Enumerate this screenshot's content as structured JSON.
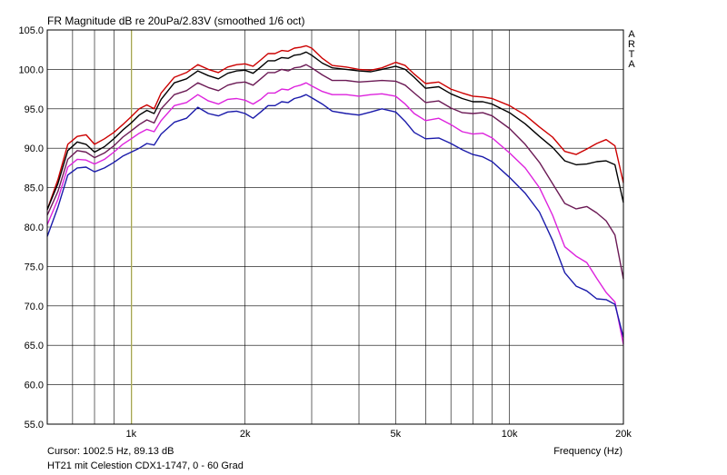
{
  "header": {
    "title": "FR Magnitude dB re 20uPa/2.83V (smoothed 1/6 oct)",
    "brand": "ARTA"
  },
  "footer": {
    "cursor_readout": "Cursor: 1002.5 Hz, 89.13 dB",
    "note": "HT21 mit Celestion CDX1-1747, 0 - 60 Grad"
  },
  "chart_data": {
    "type": "line",
    "x_scale": "log",
    "xlabel": "Frequency (Hz)",
    "ylabel": "",
    "xlim": [
      600,
      20000
    ],
    "ylim": [
      55,
      105
    ],
    "x_tick_labels": [
      {
        "value": 1000,
        "label": "1k"
      },
      {
        "value": 2000,
        "label": "2k"
      },
      {
        "value": 5000,
        "label": "5k"
      },
      {
        "value": 10000,
        "label": "10k"
      },
      {
        "value": 20000,
        "label": "20k"
      }
    ],
    "y_ticks": [
      55.0,
      60.0,
      65.0,
      70.0,
      75.0,
      80.0,
      85.0,
      90.0,
      95.0,
      100.0,
      105.0
    ],
    "grid": true,
    "cursor_x": 1002.5,
    "colors": {
      "grid": "#000000",
      "cursor": "#c8c864",
      "frame": "#000000"
    },
    "series": [
      {
        "color": "#cc0000",
        "points": [
          [
            600,
            82.2
          ],
          [
            640,
            86
          ],
          [
            680,
            90.5
          ],
          [
            720,
            91.5
          ],
          [
            760,
            91.7
          ],
          [
            800,
            90.5
          ],
          [
            850,
            91.2
          ],
          [
            900,
            92
          ],
          [
            950,
            93
          ],
          [
            1000,
            94
          ],
          [
            1050,
            95
          ],
          [
            1100,
            95.5
          ],
          [
            1150,
            95
          ],
          [
            1200,
            97
          ],
          [
            1300,
            99
          ],
          [
            1400,
            99.6
          ],
          [
            1500,
            100.6
          ],
          [
            1600,
            100
          ],
          [
            1700,
            99.6
          ],
          [
            1800,
            100.3
          ],
          [
            1900,
            100.6
          ],
          [
            2000,
            100.7
          ],
          [
            2100,
            100.4
          ],
          [
            2200,
            101.2
          ],
          [
            2300,
            102
          ],
          [
            2400,
            102
          ],
          [
            2500,
            102.4
          ],
          [
            2600,
            102.3
          ],
          [
            2700,
            102.7
          ],
          [
            2800,
            102.8
          ],
          [
            2900,
            103
          ],
          [
            3000,
            102.7
          ],
          [
            3200,
            101.4
          ],
          [
            3400,
            100.5
          ],
          [
            3700,
            100.3
          ],
          [
            4000,
            100
          ],
          [
            4300,
            99.9
          ],
          [
            4600,
            100.2
          ],
          [
            5000,
            100.9
          ],
          [
            5300,
            100.5
          ],
          [
            5600,
            99.4
          ],
          [
            6000,
            98.2
          ],
          [
            6500,
            98.4
          ],
          [
            7000,
            97.5
          ],
          [
            7500,
            97
          ],
          [
            8000,
            96.6
          ],
          [
            8500,
            96.5
          ],
          [
            9000,
            96.3
          ],
          [
            10000,
            95.4
          ],
          [
            11000,
            94.2
          ],
          [
            12000,
            92.7
          ],
          [
            13000,
            91.4
          ],
          [
            14000,
            89.6
          ],
          [
            15000,
            89.2
          ],
          [
            16000,
            89.9
          ],
          [
            17000,
            90.6
          ],
          [
            18000,
            91.1
          ],
          [
            19000,
            90.3
          ],
          [
            20000,
            85.6
          ]
        ]
      },
      {
        "color": "#000000",
        "points": [
          [
            600,
            82.2
          ],
          [
            640,
            85.5
          ],
          [
            680,
            89.7
          ],
          [
            720,
            90.8
          ],
          [
            760,
            90.5
          ],
          [
            800,
            89.5
          ],
          [
            850,
            90.2
          ],
          [
            900,
            91.2
          ],
          [
            950,
            92.3
          ],
          [
            1000,
            93.2
          ],
          [
            1050,
            94.2
          ],
          [
            1100,
            94.8
          ],
          [
            1150,
            94.4
          ],
          [
            1200,
            96.2
          ],
          [
            1300,
            98.3
          ],
          [
            1400,
            98.8
          ],
          [
            1500,
            99.8
          ],
          [
            1600,
            99.2
          ],
          [
            1700,
            98.8
          ],
          [
            1800,
            99.5
          ],
          [
            1900,
            99.8
          ],
          [
            2000,
            99.9
          ],
          [
            2100,
            99.5
          ],
          [
            2200,
            100.3
          ],
          [
            2300,
            101.1
          ],
          [
            2400,
            101.1
          ],
          [
            2500,
            101.5
          ],
          [
            2600,
            101.4
          ],
          [
            2700,
            101.8
          ],
          [
            2800,
            101.9
          ],
          [
            2900,
            102.2
          ],
          [
            3000,
            101.8
          ],
          [
            3200,
            100.8
          ],
          [
            3400,
            100.2
          ],
          [
            3700,
            100
          ],
          [
            4000,
            99.8
          ],
          [
            4300,
            99.7
          ],
          [
            4600,
            100
          ],
          [
            5000,
            100.4
          ],
          [
            5300,
            100
          ],
          [
            5600,
            99
          ],
          [
            6000,
            97.6
          ],
          [
            6500,
            97.8
          ],
          [
            7000,
            96.9
          ],
          [
            7500,
            96.3
          ],
          [
            8000,
            95.9
          ],
          [
            8500,
            95.9
          ],
          [
            9000,
            95.6
          ],
          [
            10000,
            94.5
          ],
          [
            11000,
            93.1
          ],
          [
            12000,
            91.5
          ],
          [
            13000,
            90.1
          ],
          [
            14000,
            88.4
          ],
          [
            15000,
            87.9
          ],
          [
            16000,
            88
          ],
          [
            17000,
            88.3
          ],
          [
            18000,
            88.4
          ],
          [
            19000,
            87.9
          ],
          [
            20000,
            83.1
          ]
        ]
      },
      {
        "color": "#6b1a55",
        "points": [
          [
            600,
            81.5
          ],
          [
            640,
            84.5
          ],
          [
            680,
            88.6
          ],
          [
            720,
            89.7
          ],
          [
            760,
            89.5
          ],
          [
            800,
            88.8
          ],
          [
            850,
            89.4
          ],
          [
            900,
            90.3
          ],
          [
            950,
            91.4
          ],
          [
            1000,
            92.2
          ],
          [
            1050,
            93
          ],
          [
            1100,
            93.6
          ],
          [
            1150,
            93.2
          ],
          [
            1200,
            95
          ],
          [
            1300,
            96.8
          ],
          [
            1400,
            97.3
          ],
          [
            1500,
            98.3
          ],
          [
            1600,
            97.7
          ],
          [
            1700,
            97.3
          ],
          [
            1800,
            98
          ],
          [
            1900,
            98.3
          ],
          [
            2000,
            98.4
          ],
          [
            2100,
            98
          ],
          [
            2200,
            98.8
          ],
          [
            2300,
            99.6
          ],
          [
            2400,
            99.6
          ],
          [
            2500,
            100
          ],
          [
            2600,
            99.8
          ],
          [
            2700,
            100.2
          ],
          [
            2800,
            100.3
          ],
          [
            2900,
            100.6
          ],
          [
            3000,
            100.2
          ],
          [
            3200,
            99.3
          ],
          [
            3400,
            98.6
          ],
          [
            3700,
            98.6
          ],
          [
            4000,
            98.4
          ],
          [
            4300,
            98.5
          ],
          [
            4600,
            98.6
          ],
          [
            5000,
            98.5
          ],
          [
            5300,
            98
          ],
          [
            5600,
            97
          ],
          [
            6000,
            95.8
          ],
          [
            6500,
            96
          ],
          [
            7000,
            95.1
          ],
          [
            7500,
            94.5
          ],
          [
            8000,
            94.4
          ],
          [
            8500,
            94.5
          ],
          [
            9000,
            94.1
          ],
          [
            10000,
            92.5
          ],
          [
            11000,
            90.5
          ],
          [
            12000,
            88.2
          ],
          [
            13000,
            85.5
          ],
          [
            14000,
            83
          ],
          [
            15000,
            82.3
          ],
          [
            16000,
            82.6
          ],
          [
            17000,
            81.8
          ],
          [
            18000,
            80.8
          ],
          [
            19000,
            79
          ],
          [
            20000,
            73.4
          ]
        ]
      },
      {
        "color": "#dd22dd",
        "points": [
          [
            600,
            80.3
          ],
          [
            640,
            83.5
          ],
          [
            680,
            87.6
          ],
          [
            720,
            88.6
          ],
          [
            760,
            88.5
          ],
          [
            800,
            88
          ],
          [
            850,
            88.6
          ],
          [
            900,
            89.5
          ],
          [
            950,
            90.5
          ],
          [
            1000,
            91.2
          ],
          [
            1050,
            91.9
          ],
          [
            1100,
            92.4
          ],
          [
            1150,
            92.1
          ],
          [
            1200,
            93.5
          ],
          [
            1300,
            95.4
          ],
          [
            1400,
            95.8
          ],
          [
            1500,
            96.8
          ],
          [
            1600,
            96
          ],
          [
            1700,
            95.6
          ],
          [
            1800,
            96.2
          ],
          [
            1900,
            96.3
          ],
          [
            2000,
            96.1
          ],
          [
            2100,
            95.6
          ],
          [
            2200,
            96.2
          ],
          [
            2300,
            97
          ],
          [
            2400,
            97
          ],
          [
            2500,
            97.5
          ],
          [
            2600,
            97.4
          ],
          [
            2700,
            97.8
          ],
          [
            2800,
            98
          ],
          [
            2900,
            98.3
          ],
          [
            3000,
            97.9
          ],
          [
            3200,
            97.2
          ],
          [
            3400,
            96.8
          ],
          [
            3700,
            96.8
          ],
          [
            4000,
            96.6
          ],
          [
            4300,
            96.8
          ],
          [
            4600,
            96.9
          ],
          [
            5000,
            96.6
          ],
          [
            5300,
            95.6
          ],
          [
            5600,
            94.4
          ],
          [
            6000,
            93.5
          ],
          [
            6500,
            93.8
          ],
          [
            7000,
            93
          ],
          [
            7500,
            92.1
          ],
          [
            8000,
            91.8
          ],
          [
            8500,
            91.9
          ],
          [
            9000,
            91.3
          ],
          [
            10000,
            89.4
          ],
          [
            11000,
            87.5
          ],
          [
            12000,
            85
          ],
          [
            13000,
            81.5
          ],
          [
            14000,
            77.5
          ],
          [
            15000,
            76.3
          ],
          [
            16000,
            75.5
          ],
          [
            17000,
            73.5
          ],
          [
            18000,
            71.7
          ],
          [
            19000,
            70.5
          ],
          [
            20000,
            65.1
          ]
        ]
      },
      {
        "color": "#1a1aaa",
        "points": [
          [
            600,
            78.8
          ],
          [
            640,
            82.5
          ],
          [
            680,
            86.6
          ],
          [
            720,
            87.5
          ],
          [
            760,
            87.6
          ],
          [
            800,
            87
          ],
          [
            850,
            87.5
          ],
          [
            900,
            88.2
          ],
          [
            950,
            89
          ],
          [
            1000,
            89.5
          ],
          [
            1050,
            90
          ],
          [
            1100,
            90.6
          ],
          [
            1150,
            90.4
          ],
          [
            1200,
            91.8
          ],
          [
            1300,
            93.3
          ],
          [
            1400,
            93.8
          ],
          [
            1500,
            95.2
          ],
          [
            1600,
            94.4
          ],
          [
            1700,
            94.1
          ],
          [
            1800,
            94.6
          ],
          [
            1900,
            94.7
          ],
          [
            2000,
            94.4
          ],
          [
            2100,
            93.8
          ],
          [
            2200,
            94.6
          ],
          [
            2300,
            95.4
          ],
          [
            2400,
            95.4
          ],
          [
            2500,
            95.9
          ],
          [
            2600,
            95.8
          ],
          [
            2700,
            96.3
          ],
          [
            2800,
            96.5
          ],
          [
            2900,
            96.8
          ],
          [
            3000,
            96.4
          ],
          [
            3200,
            95.6
          ],
          [
            3400,
            94.7
          ],
          [
            3700,
            94.4
          ],
          [
            4000,
            94.2
          ],
          [
            4300,
            94.6
          ],
          [
            4600,
            95
          ],
          [
            5000,
            94.6
          ],
          [
            5300,
            93.4
          ],
          [
            5600,
            92
          ],
          [
            6000,
            91.2
          ],
          [
            6500,
            91.3
          ],
          [
            7000,
            90.6
          ],
          [
            7500,
            89.8
          ],
          [
            8000,
            89.2
          ],
          [
            8500,
            88.9
          ],
          [
            9000,
            88.3
          ],
          [
            10000,
            86.3
          ],
          [
            11000,
            84.3
          ],
          [
            12000,
            81.9
          ],
          [
            13000,
            78.3
          ],
          [
            14000,
            74.2
          ],
          [
            15000,
            72.5
          ],
          [
            16000,
            71.9
          ],
          [
            17000,
            70.9
          ],
          [
            18000,
            70.8
          ],
          [
            19000,
            70.2
          ],
          [
            20000,
            66
          ]
        ]
      }
    ]
  }
}
